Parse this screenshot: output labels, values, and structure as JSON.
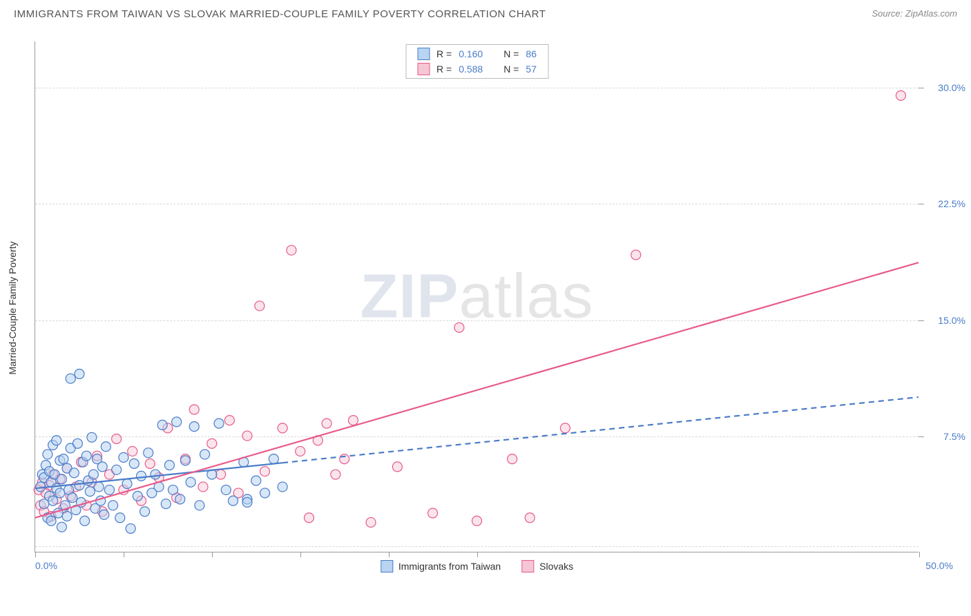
{
  "title": "IMMIGRANTS FROM TAIWAN VS SLOVAK MARRIED-COUPLE FAMILY POVERTY CORRELATION CHART",
  "source_label": "Source: ZipAtlas.com",
  "watermark_zip": "ZIP",
  "watermark_atlas": "atlas",
  "chart": {
    "type": "scatter",
    "y_axis_title": "Married-Couple Family Poverty",
    "xlim": [
      0,
      50
    ],
    "ylim": [
      0,
      33
    ],
    "y_ticks": [
      7.5,
      15.0,
      22.5,
      30.0
    ],
    "y_tick_labels": [
      "7.5%",
      "15.0%",
      "22.5%",
      "30.0%"
    ],
    "y_grid_extra": [
      0.4
    ],
    "x_ticks": [
      0,
      5,
      10,
      15,
      20,
      25,
      50
    ],
    "x_label_start": "0.0%",
    "x_label_end": "50.0%",
    "grid_color": "#d8d8d8",
    "axis_color": "#999999",
    "background_color": "#ffffff",
    "point_radius": 7,
    "point_stroke_width": 1.2,
    "trend_line_width": 2.2,
    "series": [
      {
        "name": "Immigrants from Taiwan",
        "fill": "#b8d4f0",
        "stroke": "#4a7cc9",
        "fill_opacity": 0.55,
        "R": "0.160",
        "N": "86",
        "trend_solid_until_x": 14,
        "trend": {
          "x1": 0,
          "y1": 4.1,
          "x2": 50,
          "y2": 10.0
        },
        "points": [
          [
            0.3,
            4.2
          ],
          [
            0.4,
            5.0
          ],
          [
            0.5,
            3.1
          ],
          [
            0.5,
            4.8
          ],
          [
            0.6,
            5.6
          ],
          [
            0.7,
            2.2
          ],
          [
            0.7,
            6.3
          ],
          [
            0.8,
            3.6
          ],
          [
            0.8,
            5.2
          ],
          [
            0.9,
            4.5
          ],
          [
            0.9,
            2.0
          ],
          [
            1.0,
            6.9
          ],
          [
            1.0,
            3.3
          ],
          [
            1.1,
            5.0
          ],
          [
            1.2,
            4.1
          ],
          [
            1.2,
            7.2
          ],
          [
            1.3,
            2.5
          ],
          [
            1.4,
            5.9
          ],
          [
            1.4,
            3.8
          ],
          [
            1.5,
            4.7
          ],
          [
            1.5,
            1.6
          ],
          [
            1.6,
            6.0
          ],
          [
            1.7,
            3.0
          ],
          [
            1.8,
            5.4
          ],
          [
            1.8,
            2.3
          ],
          [
            1.9,
            4.0
          ],
          [
            2.0,
            11.2
          ],
          [
            2.0,
            6.7
          ],
          [
            2.1,
            3.5
          ],
          [
            2.2,
            5.1
          ],
          [
            2.3,
            2.7
          ],
          [
            2.4,
            7.0
          ],
          [
            2.5,
            4.3
          ],
          [
            2.5,
            11.5
          ],
          [
            2.6,
            3.2
          ],
          [
            2.7,
            5.8
          ],
          [
            2.8,
            2.0
          ],
          [
            2.9,
            6.2
          ],
          [
            3.0,
            4.6
          ],
          [
            3.1,
            3.9
          ],
          [
            3.2,
            7.4
          ],
          [
            3.3,
            5.0
          ],
          [
            3.4,
            2.8
          ],
          [
            3.5,
            6.0
          ],
          [
            3.6,
            4.2
          ],
          [
            3.7,
            3.3
          ],
          [
            3.8,
            5.5
          ],
          [
            3.9,
            2.4
          ],
          [
            4.0,
            6.8
          ],
          [
            4.2,
            4.0
          ],
          [
            4.4,
            3.0
          ],
          [
            4.6,
            5.3
          ],
          [
            4.8,
            2.2
          ],
          [
            5.0,
            6.1
          ],
          [
            5.2,
            4.4
          ],
          [
            5.4,
            1.5
          ],
          [
            5.6,
            5.7
          ],
          [
            5.8,
            3.6
          ],
          [
            6.0,
            4.9
          ],
          [
            6.2,
            2.6
          ],
          [
            6.4,
            6.4
          ],
          [
            6.6,
            3.8
          ],
          [
            6.8,
            5.0
          ],
          [
            7.0,
            4.2
          ],
          [
            7.2,
            8.2
          ],
          [
            7.4,
            3.1
          ],
          [
            7.6,
            5.6
          ],
          [
            7.8,
            4.0
          ],
          [
            8.0,
            8.4
          ],
          [
            8.2,
            3.4
          ],
          [
            8.5,
            5.9
          ],
          [
            8.8,
            4.5
          ],
          [
            9.0,
            8.1
          ],
          [
            9.3,
            3.0
          ],
          [
            9.6,
            6.3
          ],
          [
            10.0,
            5.0
          ],
          [
            10.4,
            8.3
          ],
          [
            10.8,
            4.0
          ],
          [
            11.2,
            3.3
          ],
          [
            11.8,
            5.8
          ],
          [
            12.0,
            3.4
          ],
          [
            12.0,
            3.2
          ],
          [
            12.5,
            4.6
          ],
          [
            13.0,
            3.8
          ],
          [
            13.5,
            6.0
          ],
          [
            14.0,
            4.2
          ]
        ]
      },
      {
        "name": "Slovaks",
        "fill": "#f5c6d4",
        "stroke": "#e85a8a",
        "fill_opacity": 0.45,
        "R": "0.588",
        "N": "57",
        "trend_solid_until_x": 50,
        "trend": {
          "x1": 0,
          "y1": 2.2,
          "x2": 50,
          "y2": 18.7
        },
        "points": [
          [
            0.2,
            4.0
          ],
          [
            0.3,
            3.0
          ],
          [
            0.4,
            4.5
          ],
          [
            0.5,
            2.6
          ],
          [
            0.6,
            3.8
          ],
          [
            0.8,
            4.3
          ],
          [
            0.9,
            2.3
          ],
          [
            1.0,
            5.0
          ],
          [
            1.2,
            3.4
          ],
          [
            1.4,
            4.7
          ],
          [
            1.6,
            2.8
          ],
          [
            1.8,
            5.4
          ],
          [
            2.0,
            3.6
          ],
          [
            2.3,
            4.2
          ],
          [
            2.6,
            5.8
          ],
          [
            2.9,
            3.0
          ],
          [
            3.2,
            4.5
          ],
          [
            3.5,
            6.2
          ],
          [
            3.8,
            2.6
          ],
          [
            4.2,
            5.0
          ],
          [
            4.6,
            7.3
          ],
          [
            5.0,
            4.0
          ],
          [
            5.5,
            6.5
          ],
          [
            6.0,
            3.3
          ],
          [
            6.5,
            5.7
          ],
          [
            7.0,
            4.8
          ],
          [
            7.5,
            8.0
          ],
          [
            8.0,
            3.5
          ],
          [
            8.5,
            6.0
          ],
          [
            9.0,
            9.2
          ],
          [
            9.5,
            4.2
          ],
          [
            10.0,
            7.0
          ],
          [
            10.5,
            5.0
          ],
          [
            11.0,
            8.5
          ],
          [
            11.5,
            3.8
          ],
          [
            12.0,
            7.5
          ],
          [
            12.7,
            15.9
          ],
          [
            13.0,
            5.2
          ],
          [
            14.0,
            8.0
          ],
          [
            14.5,
            19.5
          ],
          [
            15.0,
            6.5
          ],
          [
            15.5,
            2.2
          ],
          [
            16.0,
            7.2
          ],
          [
            16.5,
            8.3
          ],
          [
            17.0,
            5.0
          ],
          [
            17.5,
            6.0
          ],
          [
            18.0,
            8.5
          ],
          [
            19.0,
            1.9
          ],
          [
            20.5,
            5.5
          ],
          [
            22.5,
            2.5
          ],
          [
            24.0,
            14.5
          ],
          [
            25.0,
            2.0
          ],
          [
            27.0,
            6.0
          ],
          [
            28.0,
            2.2
          ],
          [
            30.0,
            8.0
          ],
          [
            34.0,
            19.2
          ],
          [
            49.0,
            29.5
          ]
        ]
      }
    ]
  },
  "legend_top_prefix_R": "R = ",
  "legend_top_prefix_N": "N = "
}
